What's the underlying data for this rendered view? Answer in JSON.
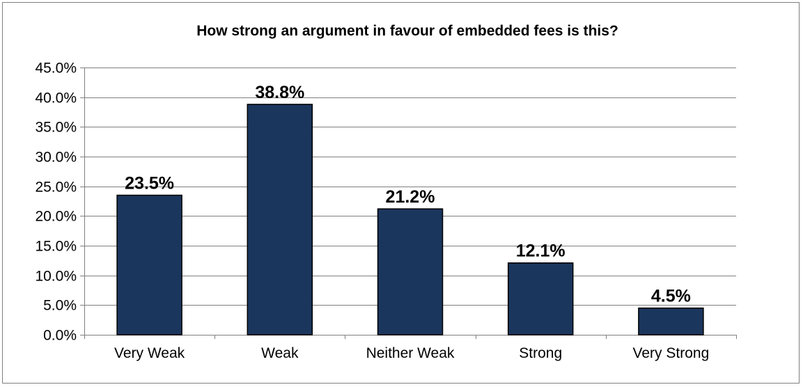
{
  "chart_data": {
    "type": "bar",
    "title": "How strong an argument in favour of embedded fees is this?",
    "categories": [
      "Very Weak",
      "Weak",
      "Neither Weak",
      "Strong",
      "Very Strong"
    ],
    "values": [
      23.5,
      38.8,
      21.2,
      12.1,
      4.5
    ],
    "data_labels": [
      "23.5%",
      "38.8%",
      "21.2%",
      "12.1%",
      "4.5%"
    ],
    "y_ticks": [
      0,
      5,
      10,
      15,
      20,
      25,
      30,
      35,
      40,
      45
    ],
    "y_tick_labels": [
      "0.0%",
      "5.0%",
      "10.0%",
      "15.0%",
      "20.0%",
      "25.0%",
      "30.0%",
      "35.0%",
      "40.0%",
      "45.0%"
    ],
    "ylim": [
      0,
      45
    ],
    "xlabel": "",
    "ylabel": "",
    "grid": true,
    "legend": "none",
    "colors": {
      "bar_fill": "#1b365d",
      "bar_stroke": "#000000",
      "gridline": "#7f7f7f",
      "axis": "#7f7f7f",
      "frame": "#7f7f7f"
    }
  }
}
